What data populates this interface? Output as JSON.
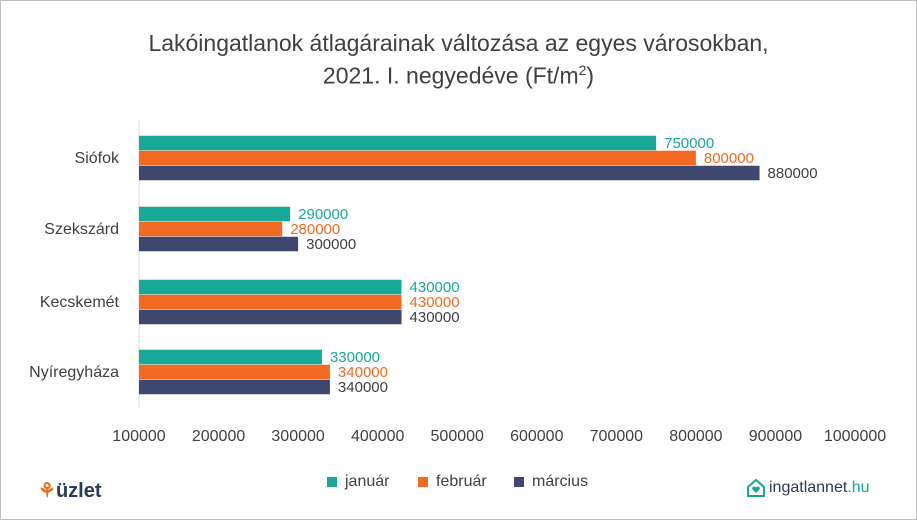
{
  "title_line1": "Lakóingatlanok átlagárainak változása az egyes városokban,",
  "title_line2": "2021. I. negyedéve (Ft/m",
  "title_sup": "2",
  "title_end": ")",
  "chart_data": {
    "type": "bar",
    "orientation": "horizontal",
    "categories": [
      "Siófok",
      "Szekszárd",
      "Kecskemét",
      "Nyíregyháza"
    ],
    "series": [
      {
        "name": "január",
        "color": "#17a898",
        "values": [
          750000,
          290000,
          430000,
          330000
        ]
      },
      {
        "name": "február",
        "color": "#f26a21",
        "values": [
          800000,
          280000,
          430000,
          340000
        ]
      },
      {
        "name": "március",
        "color": "#3f4770",
        "values": [
          880000,
          300000,
          430000,
          340000
        ]
      }
    ],
    "xlim": [
      100000,
      1000000
    ],
    "xticks": [
      "100000",
      "200000",
      "300000",
      "400000",
      "500000",
      "600000",
      "700000",
      "800000",
      "900000",
      "1000000"
    ],
    "grid": false,
    "legend_position": "bottom"
  },
  "logos": {
    "left": {
      "prefix": "",
      "mark": "üzlet"
    },
    "right": {
      "name": "ingatlannet",
      "suffix": ".hu"
    }
  }
}
